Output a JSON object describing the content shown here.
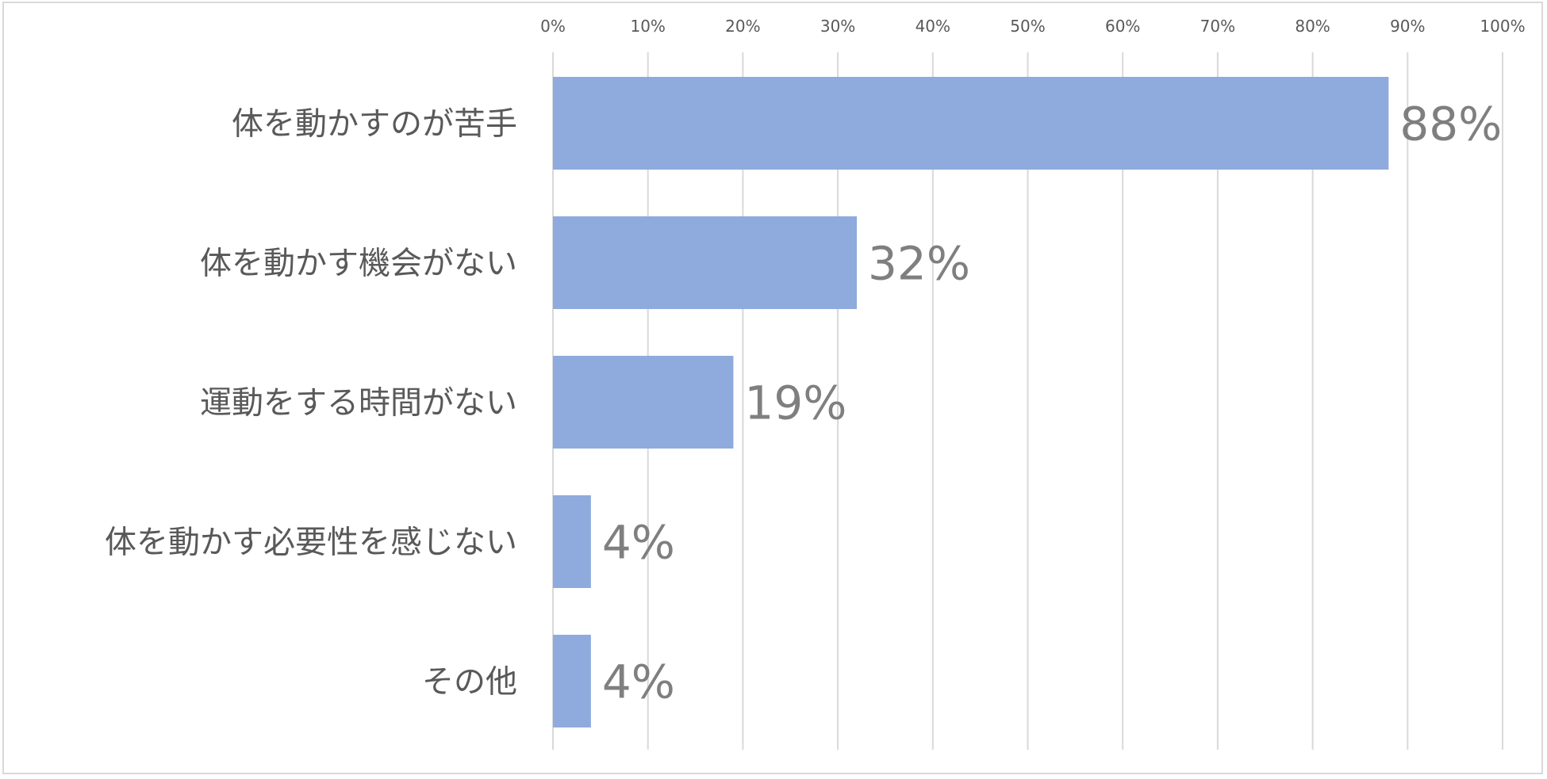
{
  "chart_data": {
    "type": "bar",
    "orientation": "horizontal",
    "categories": [
      "体を動かすのが苦手",
      "体を動かす機会がない",
      "運動をする時間がない",
      "体を動かす必要性を感じない",
      "その他"
    ],
    "values": [
      88,
      32,
      19,
      4,
      4
    ],
    "data_labels": [
      "88%",
      "32%",
      "19%",
      "4%",
      "4%"
    ],
    "xlim": [
      0,
      100
    ],
    "x_ticks": [
      0,
      10,
      20,
      30,
      40,
      50,
      60,
      70,
      80,
      90,
      100
    ],
    "x_tick_labels": [
      "0%",
      "10%",
      "20%",
      "30%",
      "40%",
      "50%",
      "60%",
      "70%",
      "80%",
      "90%",
      "100%"
    ],
    "x_axis_position": "top",
    "grid": true,
    "legend": "none",
    "bar_color": "#8FAADC",
    "gridline_color": "#D9D9D9",
    "label_color": "#595959",
    "data_label_color": "#7F7F7F"
  }
}
